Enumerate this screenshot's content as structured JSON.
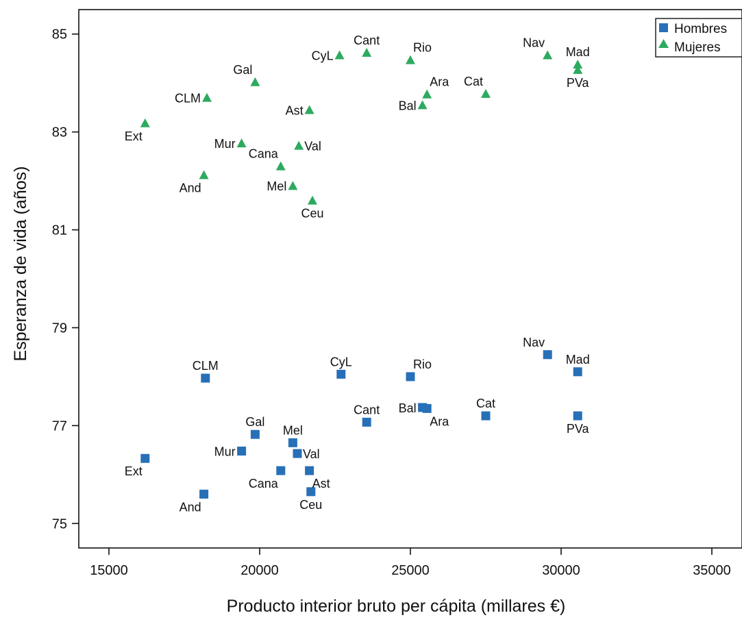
{
  "chart_data": {
    "type": "scatter",
    "title": "",
    "xlabel": "Producto interior bruto per cápita (millares €)",
    "ylabel": "Esperanza de vida (años)",
    "xlim": [
      14000,
      36000
    ],
    "ylim": [
      74.5,
      85.5
    ],
    "xticks": [
      15000,
      20000,
      25000,
      30000,
      35000
    ],
    "yticks": [
      75,
      77,
      79,
      81,
      83,
      85
    ],
    "legend_position": "top-right",
    "grid": false,
    "series": [
      {
        "name": "Hombres",
        "marker": "square",
        "color": "#2770b8",
        "points": [
          {
            "label": "CLM",
            "x": 18200,
            "y": 77.97,
            "pos": "above"
          },
          {
            "label": "CyL",
            "x": 22700,
            "y": 78.05,
            "pos": "above"
          },
          {
            "label": "Rio",
            "x": 25000,
            "y": 78.0,
            "pos": "above-right"
          },
          {
            "label": "Nav",
            "x": 29550,
            "y": 78.45,
            "pos": "above-left"
          },
          {
            "label": "Mad",
            "x": 30550,
            "y": 78.1,
            "pos": "above"
          },
          {
            "label": "Cat",
            "x": 27500,
            "y": 77.2,
            "pos": "above"
          },
          {
            "label": "Bal",
            "x": 25400,
            "y": 77.37,
            "pos": "left"
          },
          {
            "label": "Ara",
            "x": 25550,
            "y": 77.35,
            "pos": "below-right"
          },
          {
            "label": "PVa",
            "x": 30550,
            "y": 77.2,
            "pos": "below"
          },
          {
            "label": "Cant",
            "x": 23550,
            "y": 77.07,
            "pos": "above"
          },
          {
            "label": "Gal",
            "x": 19850,
            "y": 76.82,
            "pos": "above"
          },
          {
            "label": "Mel",
            "x": 21100,
            "y": 76.65,
            "pos": "above"
          },
          {
            "label": "Mur",
            "x": 19400,
            "y": 76.48,
            "pos": "left"
          },
          {
            "label": "Val",
            "x": 21250,
            "y": 76.43,
            "pos": "right"
          },
          {
            "label": "Ext",
            "x": 16200,
            "y": 76.33,
            "pos": "below-left"
          },
          {
            "label": "Cana",
            "x": 20700,
            "y": 76.08,
            "pos": "below-left"
          },
          {
            "label": "Ast",
            "x": 21650,
            "y": 76.08,
            "pos": "below-right"
          },
          {
            "label": "Ceu",
            "x": 21700,
            "y": 75.65,
            "pos": "below"
          },
          {
            "label": "And",
            "x": 18150,
            "y": 75.6,
            "pos": "below-left"
          }
        ]
      },
      {
        "name": "Mujeres",
        "marker": "triangle",
        "color": "#2daa5f",
        "points": [
          {
            "label": "CyL",
            "x": 22650,
            "y": 84.57,
            "pos": "left"
          },
          {
            "label": "Cant",
            "x": 23550,
            "y": 84.62,
            "pos": "above"
          },
          {
            "label": "Rio",
            "x": 25000,
            "y": 84.47,
            "pos": "above-right"
          },
          {
            "label": "Nav",
            "x": 29550,
            "y": 84.57,
            "pos": "above-left"
          },
          {
            "label": "Mad",
            "x": 30550,
            "y": 84.38,
            "pos": "above"
          },
          {
            "label": "PVa",
            "x": 30550,
            "y": 84.27,
            "pos": "below"
          },
          {
            "label": "Gal",
            "x": 19850,
            "y": 84.02,
            "pos": "above-left"
          },
          {
            "label": "Ara",
            "x": 25550,
            "y": 83.77,
            "pos": "above-right"
          },
          {
            "label": "Cat",
            "x": 27500,
            "y": 83.78,
            "pos": "above-left"
          },
          {
            "label": "CLM",
            "x": 18250,
            "y": 83.7,
            "pos": "left"
          },
          {
            "label": "Bal",
            "x": 25400,
            "y": 83.55,
            "pos": "left"
          },
          {
            "label": "Ast",
            "x": 21650,
            "y": 83.45,
            "pos": "left"
          },
          {
            "label": "Ext",
            "x": 16200,
            "y": 83.18,
            "pos": "below-left"
          },
          {
            "label": "Mur",
            "x": 19400,
            "y": 82.77,
            "pos": "left"
          },
          {
            "label": "Val",
            "x": 21300,
            "y": 82.72,
            "pos": "right"
          },
          {
            "label": "Cana",
            "x": 20700,
            "y": 82.3,
            "pos": "above-left"
          },
          {
            "label": "And",
            "x": 18150,
            "y": 82.12,
            "pos": "below-left"
          },
          {
            "label": "Mel",
            "x": 21100,
            "y": 81.9,
            "pos": "left"
          },
          {
            "label": "Ceu",
            "x": 21750,
            "y": 81.6,
            "pos": "below"
          }
        ]
      }
    ]
  }
}
